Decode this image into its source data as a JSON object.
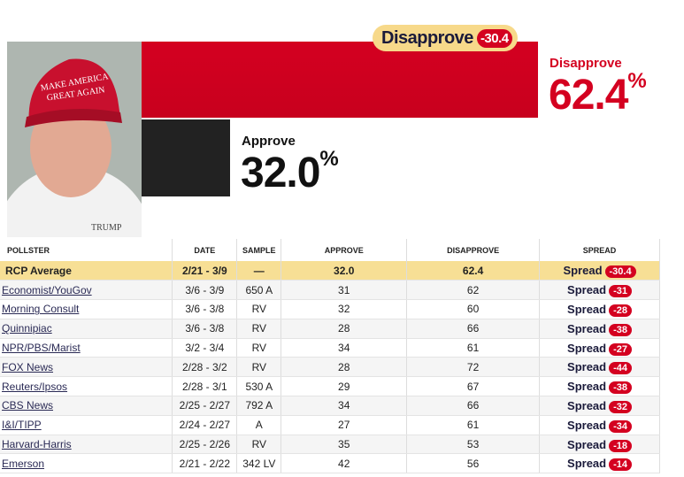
{
  "photo": {
    "cap_text": "MAKE AMERICA GREAT AGAIN",
    "shirt_logo": "TRUMP"
  },
  "summary": {
    "badge_label": "Disapprove",
    "badge_spread": "-30.4",
    "disapprove_label": "Disapprove",
    "disapprove_value": "62.4",
    "approve_label": "Approve",
    "approve_value": "32.0",
    "percent": "%",
    "disapprove_pct": 62.4,
    "approve_pct": 32.0
  },
  "colors": {
    "disapprove": "#d40020",
    "approve": "#222222",
    "highlight": "#f7df95"
  },
  "table": {
    "headers": [
      "POLLSTER",
      "DATE",
      "SAMPLE",
      "APPROVE",
      "DISAPPROVE",
      "SPREAD"
    ],
    "average": {
      "pollster": "RCP Average",
      "date": "2/21 - 3/9",
      "sample": "—",
      "approve": "32.0",
      "disapprove": "62.4",
      "spread_label": "Spread",
      "spread": "-30.4"
    },
    "rows": [
      {
        "pollster": "Economist/YouGov",
        "date": "3/6 - 3/9",
        "sample": "650 A",
        "approve": "31",
        "disapprove": "62",
        "spread_label": "Spread",
        "spread": "-31"
      },
      {
        "pollster": "Morning Consult",
        "date": "3/6 - 3/8",
        "sample": "RV",
        "approve": "32",
        "disapprove": "60",
        "spread_label": "Spread",
        "spread": "-28"
      },
      {
        "pollster": "Quinnipiac",
        "date": "3/6 - 3/8",
        "sample": "RV",
        "approve": "28",
        "disapprove": "66",
        "spread_label": "Spread",
        "spread": "-38"
      },
      {
        "pollster": "NPR/PBS/Marist",
        "date": "3/2 - 3/4",
        "sample": "RV",
        "approve": "34",
        "disapprove": "61",
        "spread_label": "Spread",
        "spread": "-27"
      },
      {
        "pollster": "FOX News",
        "date": "2/28 - 3/2",
        "sample": "RV",
        "approve": "28",
        "disapprove": "72",
        "spread_label": "Spread",
        "spread": "-44"
      },
      {
        "pollster": "Reuters/Ipsos",
        "date": "2/28 - 3/1",
        "sample": "530 A",
        "approve": "29",
        "disapprove": "67",
        "spread_label": "Spread",
        "spread": "-38"
      },
      {
        "pollster": "CBS News",
        "date": "2/25 - 2/27",
        "sample": "792 A",
        "approve": "34",
        "disapprove": "66",
        "spread_label": "Spread",
        "spread": "-32"
      },
      {
        "pollster": "I&I/TIPP",
        "date": "2/24 - 2/27",
        "sample": "A",
        "approve": "27",
        "disapprove": "61",
        "spread_label": "Spread",
        "spread": "-34"
      },
      {
        "pollster": "Harvard-Harris",
        "date": "2/25 - 2/26",
        "sample": "RV",
        "approve": "35",
        "disapprove": "53",
        "spread_label": "Spread",
        "spread": "-18"
      },
      {
        "pollster": "Emerson",
        "date": "2/21 - 2/22",
        "sample": "342 LV",
        "approve": "42",
        "disapprove": "56",
        "spread_label": "Spread",
        "spread": "-14"
      }
    ]
  }
}
